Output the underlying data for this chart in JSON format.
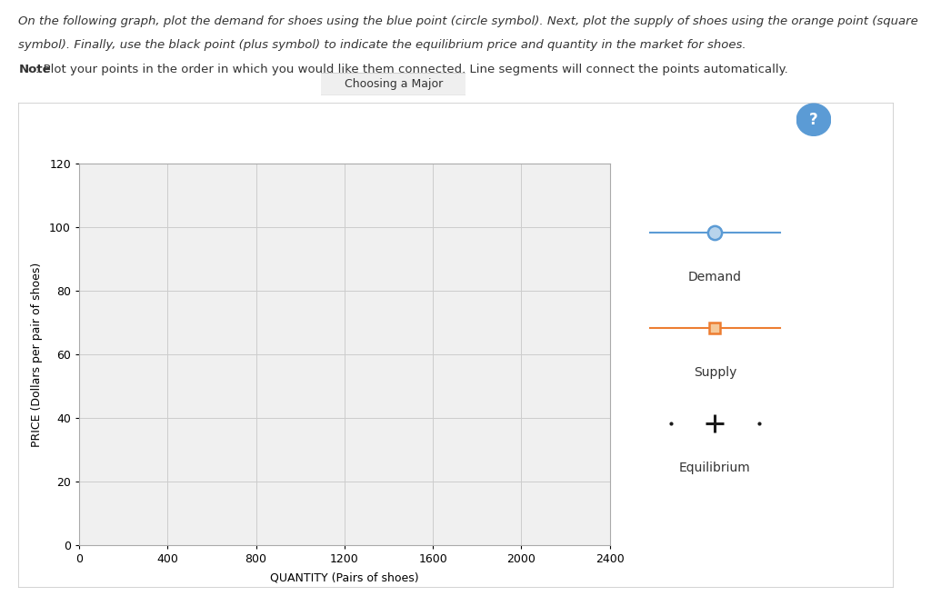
{
  "line1": "On the following graph, plot the demand for shoes using the blue point (circle symbol). Next, plot the supply of shoes using the orange point (square",
  "line2": "symbol). Finally, use the black point (plus symbol) to indicate the equilibrium price and quantity in the market for shoes.",
  "note_bold": "Note",
  "note_rest": ": Plot your points in the order in which you would like them connected. Line segments will connect the points automatically.",
  "tooltip_text": "Choosing a Major",
  "xlabel": "QUANTITY (Pairs of shoes)",
  "ylabel": "PRICE (Dollars per pair of shoes)",
  "xlim": [
    0,
    2400
  ],
  "ylim": [
    0,
    120
  ],
  "xticks": [
    0,
    400,
    800,
    1200,
    1600,
    2000,
    2400
  ],
  "yticks": [
    0,
    20,
    40,
    60,
    80,
    100,
    120
  ],
  "grid_color": "#cccccc",
  "plot_bg": "#f0f0f0",
  "outer_bg": "#ffffff",
  "box_bg": "#ffffff",
  "box_border": "#cccccc",
  "demand_color": "#5b9bd5",
  "supply_color": "#ed7d31",
  "equilibrium_color": "#1a1a1a",
  "text_color": "#333333",
  "demand_face": "#b8d4ec",
  "supply_face": "#f5c99a",
  "legend_demand_label": "Demand",
  "legend_supply_label": "Supply",
  "legend_equil_label": "Equilibrium",
  "qmark_color": "#5b9bd5",
  "font_size_text": 9.5,
  "font_size_axis": 9,
  "font_size_legend": 10
}
